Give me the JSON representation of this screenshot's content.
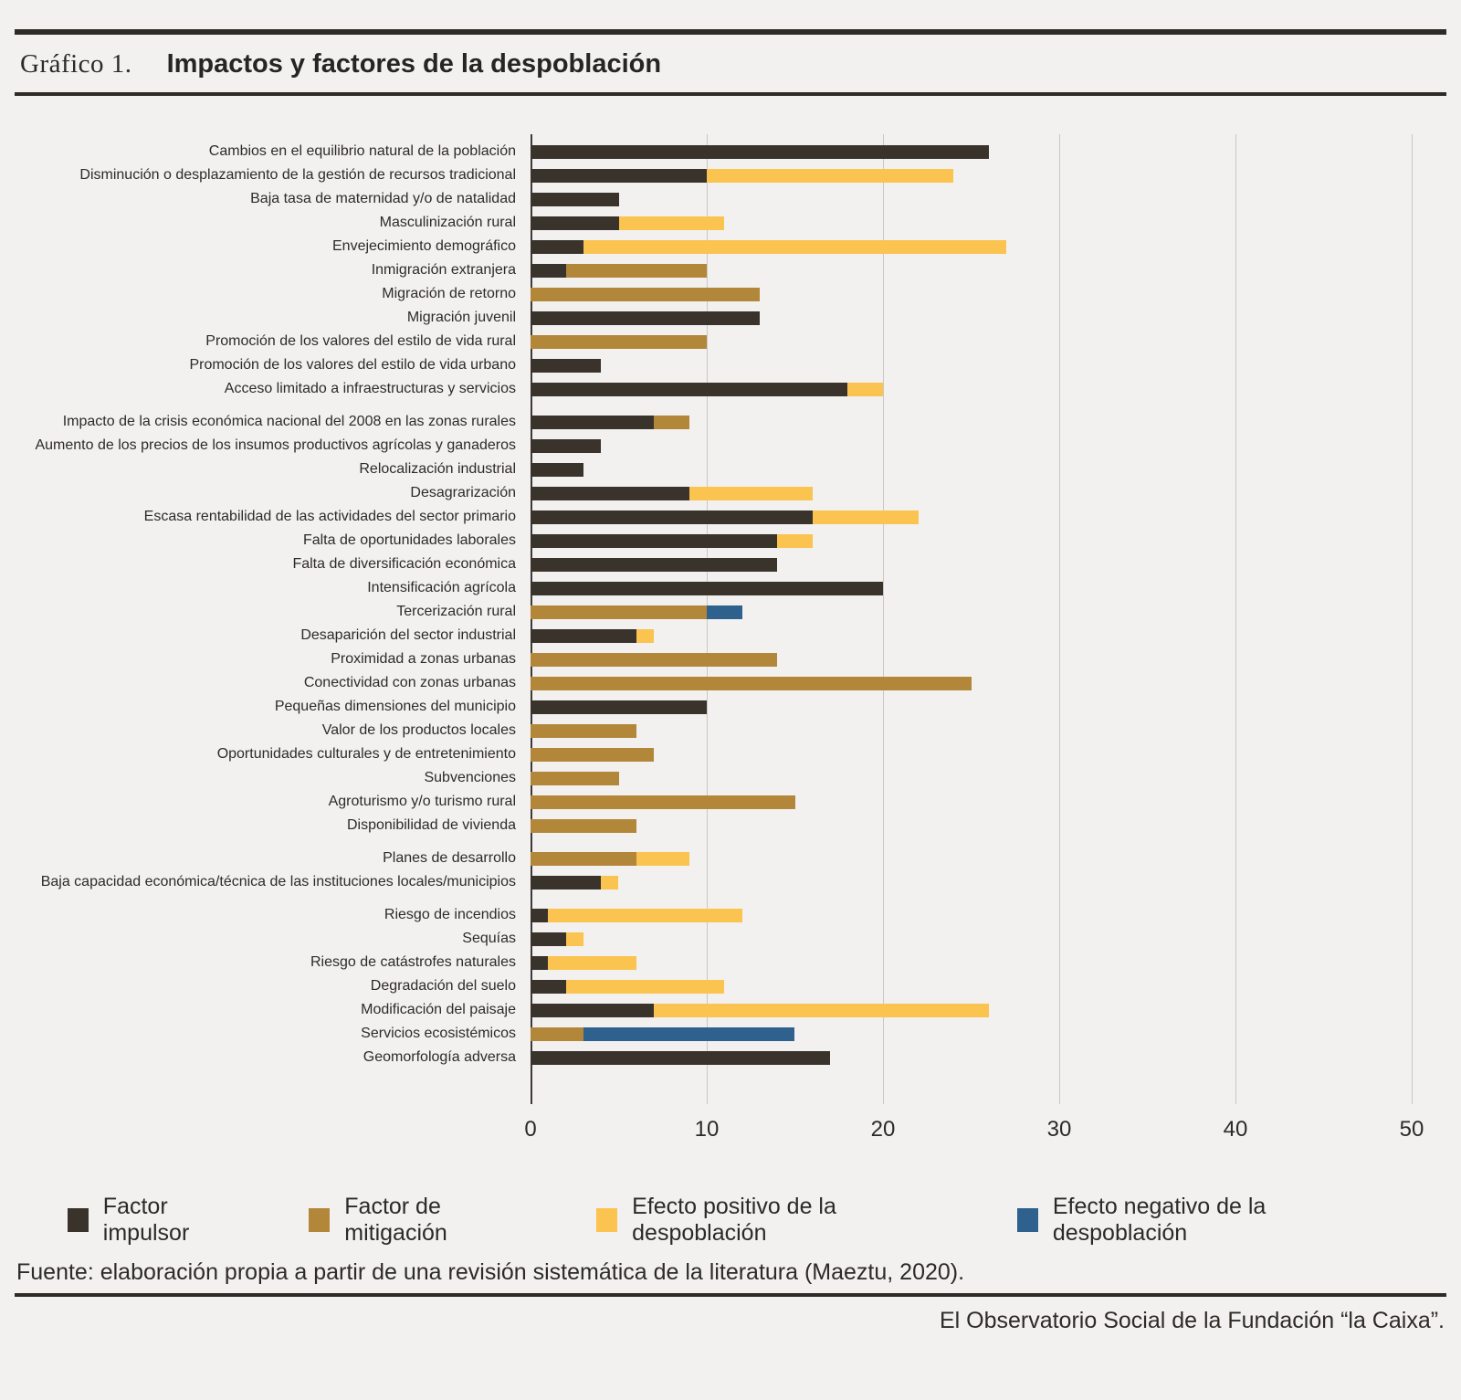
{
  "page": {
    "title_prefix": "Gráfico 1.",
    "title": "Impactos y factores de la despoblación",
    "source": "Fuente: elaboración propia a partir de una revisión sistemática de la literatura (Maeztu, 2020).",
    "credit": "El Observatorio Social de la Fundación “la Caixa”."
  },
  "colors": {
    "impulsor": "#3a332c",
    "mitigacion": "#b3873a",
    "positivo": "#fbc34f",
    "negativo": "#2e618e",
    "background": "#f2f1ef",
    "grid": "#c9c8c5",
    "axis": "#3d3a36"
  },
  "legend": [
    {
      "key": "impulsor",
      "label": "Factor impulsor"
    },
    {
      "key": "mitigacion",
      "label": "Factor de mitigación"
    },
    {
      "key": "positivo",
      "label": "Efecto positivo de la despoblación"
    },
    {
      "key": "negativo",
      "label": "Efecto negativo de la despoblación"
    }
  ],
  "chart_data": {
    "type": "bar",
    "orientation": "horizontal",
    "stacked": true,
    "xlim": [
      0,
      50
    ],
    "xticks": [
      0,
      10,
      20,
      30,
      40,
      50
    ],
    "grid": true,
    "legend_position": "bottom",
    "series_keys": [
      "impulsor",
      "mitigacion",
      "positivo",
      "negativo"
    ],
    "rows": [
      {
        "label": "Cambios en el equilibrio natural de la población",
        "impulsor": 26,
        "mitigacion": 0,
        "positivo": 0,
        "negativo": 0,
        "gap_before": false
      },
      {
        "label": "Disminución o desplazamiento de la gestión de recursos tradicional",
        "impulsor": 10,
        "mitigacion": 0,
        "positivo": 14,
        "negativo": 0,
        "gap_before": false
      },
      {
        "label": "Baja tasa de maternidad y/o de natalidad",
        "impulsor": 5,
        "mitigacion": 0,
        "positivo": 0,
        "negativo": 0,
        "gap_before": false
      },
      {
        "label": "Masculinización rural",
        "impulsor": 5,
        "mitigacion": 0,
        "positivo": 6,
        "negativo": 0,
        "gap_before": false
      },
      {
        "label": "Envejecimiento demográfico",
        "impulsor": 3,
        "mitigacion": 0,
        "positivo": 24,
        "negativo": 0,
        "gap_before": false
      },
      {
        "label": "Inmigración extranjera",
        "impulsor": 2,
        "mitigacion": 8,
        "positivo": 0,
        "negativo": 0,
        "gap_before": false
      },
      {
        "label": "Migración de retorno",
        "impulsor": 0,
        "mitigacion": 13,
        "positivo": 0,
        "negativo": 0,
        "gap_before": false
      },
      {
        "label": "Migración juvenil",
        "impulsor": 13,
        "mitigacion": 0,
        "positivo": 0,
        "negativo": 0,
        "gap_before": false
      },
      {
        "label": "Promoción de los valores del estilo de vida rural",
        "impulsor": 0,
        "mitigacion": 10,
        "positivo": 0,
        "negativo": 0,
        "gap_before": false
      },
      {
        "label": "Promoción de los valores del estilo de vida urbano",
        "impulsor": 4,
        "mitigacion": 0,
        "positivo": 0,
        "negativo": 0,
        "gap_before": false
      },
      {
        "label": "Acceso limitado a infraestructuras y servicios",
        "impulsor": 18,
        "mitigacion": 0,
        "positivo": 2,
        "negativo": 0,
        "gap_before": false
      },
      {
        "label": "Impacto de la crisis económica nacional del 2008 en las zonas rurales",
        "impulsor": 7,
        "mitigacion": 2,
        "positivo": 0,
        "negativo": 0,
        "gap_before": true
      },
      {
        "label": "Aumento de los precios de los insumos productivos agrícolas y ganaderos",
        "impulsor": 4,
        "mitigacion": 0,
        "positivo": 0,
        "negativo": 0,
        "gap_before": false
      },
      {
        "label": "Relocalización industrial",
        "impulsor": 3,
        "mitigacion": 0,
        "positivo": 0,
        "negativo": 0,
        "gap_before": false
      },
      {
        "label": "Desagrarización",
        "impulsor": 9,
        "mitigacion": 0,
        "positivo": 7,
        "negativo": 0,
        "gap_before": false
      },
      {
        "label": "Escasa rentabilidad de las actividades del sector primario",
        "impulsor": 16,
        "mitigacion": 0,
        "positivo": 6,
        "negativo": 0,
        "gap_before": false
      },
      {
        "label": "Falta de oportunidades laborales",
        "impulsor": 14,
        "mitigacion": 0,
        "positivo": 2,
        "negativo": 0,
        "gap_before": false
      },
      {
        "label": "Falta de diversificación económica",
        "impulsor": 14,
        "mitigacion": 0,
        "positivo": 0,
        "negativo": 0,
        "gap_before": false
      },
      {
        "label": "Intensificación agrícola",
        "impulsor": 20,
        "mitigacion": 0,
        "positivo": 0,
        "negativo": 0,
        "gap_before": false
      },
      {
        "label": "Tercerización rural",
        "impulsor": 0,
        "mitigacion": 10,
        "positivo": 0,
        "negativo": 2,
        "gap_before": false
      },
      {
        "label": "Desaparición del sector industrial",
        "impulsor": 6,
        "mitigacion": 0,
        "positivo": 1,
        "negativo": 0,
        "gap_before": false
      },
      {
        "label": "Proximidad a zonas urbanas",
        "impulsor": 0,
        "mitigacion": 14,
        "positivo": 0,
        "negativo": 0,
        "gap_before": false
      },
      {
        "label": "Conectividad con zonas urbanas",
        "impulsor": 0,
        "mitigacion": 25,
        "positivo": 0,
        "negativo": 0,
        "gap_before": false
      },
      {
        "label": "Pequeñas dimensiones del municipio",
        "impulsor": 10,
        "mitigacion": 0,
        "positivo": 0,
        "negativo": 0,
        "gap_before": false
      },
      {
        "label": "Valor de los productos locales",
        "impulsor": 0,
        "mitigacion": 6,
        "positivo": 0,
        "negativo": 0,
        "gap_before": false
      },
      {
        "label": "Oportunidades culturales y de entretenimiento",
        "impulsor": 0,
        "mitigacion": 7,
        "positivo": 0,
        "negativo": 0,
        "gap_before": false
      },
      {
        "label": "Subvenciones",
        "impulsor": 0,
        "mitigacion": 5,
        "positivo": 0,
        "negativo": 0,
        "gap_before": false
      },
      {
        "label": "Agroturismo y/o turismo rural",
        "impulsor": 0,
        "mitigacion": 15,
        "positivo": 0,
        "negativo": 0,
        "gap_before": false
      },
      {
        "label": "Disponibilidad de vivienda",
        "impulsor": 0,
        "mitigacion": 6,
        "positivo": 0,
        "negativo": 0,
        "gap_before": false
      },
      {
        "label": "Planes de desarrollo",
        "impulsor": 0,
        "mitigacion": 6,
        "positivo": 3,
        "negativo": 0,
        "gap_before": true
      },
      {
        "label": "Baja capacidad económica/técnica de las instituciones locales/municipios",
        "impulsor": 4,
        "mitigacion": 0,
        "positivo": 1,
        "negativo": 0,
        "gap_before": false
      },
      {
        "label": "Riesgo de incendios",
        "impulsor": 1,
        "mitigacion": 0,
        "positivo": 11,
        "negativo": 0,
        "gap_before": true
      },
      {
        "label": "Sequías",
        "impulsor": 2,
        "mitigacion": 0,
        "positivo": 1,
        "negativo": 0,
        "gap_before": false
      },
      {
        "label": "Riesgo de catástrofes naturales",
        "impulsor": 1,
        "mitigacion": 0,
        "positivo": 5,
        "negativo": 0,
        "gap_before": false
      },
      {
        "label": "Degradación del suelo",
        "impulsor": 2,
        "mitigacion": 0,
        "positivo": 9,
        "negativo": 0,
        "gap_before": false
      },
      {
        "label": "Modificación del paisaje",
        "impulsor": 7,
        "mitigacion": 0,
        "positivo": 19,
        "negativo": 0,
        "gap_before": false
      },
      {
        "label": "Servicios ecosistémicos",
        "impulsor": 0,
        "mitigacion": 3,
        "positivo": 0,
        "negativo": 12,
        "gap_before": false
      },
      {
        "label": "Geomorfología adversa",
        "impulsor": 17,
        "mitigacion": 0,
        "positivo": 0,
        "negativo": 0,
        "gap_before": false
      }
    ]
  }
}
